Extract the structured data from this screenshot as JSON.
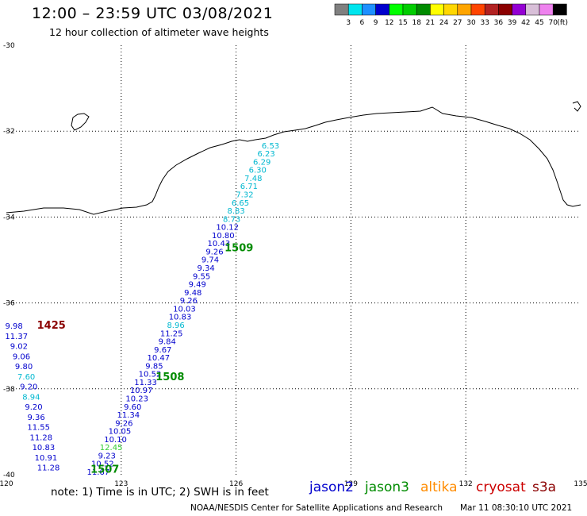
{
  "header": {
    "title": "12:00 – 23:59 UTC 03/08/2021",
    "subtitle": "12 hour collection of altimeter wave heights"
  },
  "colorbar": {
    "labels": [
      "3",
      "6",
      "9",
      "12",
      "15",
      "18",
      "21",
      "24",
      "27",
      "30",
      "33",
      "36",
      "39",
      "42",
      "45",
      "70"
    ],
    "unit": "(ft)",
    "colors": [
      "#808080",
      "#00e5ee",
      "#1e90ff",
      "#0000cd",
      "#00ff00",
      "#00cd00",
      "#008b00",
      "#ffff00",
      "#ffd700",
      "#ffa500",
      "#ff4500",
      "#b22222",
      "#8b0000",
      "#9400d3",
      "#d8bfd8",
      "#ee82ee",
      "#000000"
    ]
  },
  "axes": {
    "x_ticks": [
      "120",
      "123",
      "126",
      "129",
      "132",
      "135"
    ],
    "x_values": [
      120,
      123,
      126,
      129,
      132,
      135
    ],
    "y_ticks": [
      "-30",
      "-32",
      "-34",
      "-36",
      "-38",
      "-40"
    ],
    "y_values": [
      -30,
      -32,
      -34,
      -36,
      -38,
      -40
    ],
    "lon_range": [
      120,
      135
    ],
    "lat_range": [
      -40,
      -30
    ],
    "grid": true
  },
  "tracks": [
    {
      "lon": 126.8,
      "lat": -32.4,
      "lon_start": 126.9,
      "values": [
        "6.53",
        "6.23",
        "6.29",
        "6.30",
        "7.48",
        "6.71",
        "7.32",
        "6.65",
        "8.83",
        "8.73",
        "10.12",
        "10.80",
        "10.43",
        "9.26",
        "9.74",
        "9.34",
        "9.55",
        "9.49",
        "9.48",
        "9.26",
        "10.03",
        "10.83",
        "8.96",
        "11.25",
        "9.84",
        "9.67",
        "10.47",
        "9.85",
        "10.52",
        "11.33",
        "10.97",
        "10.23",
        "9.60",
        "11.34",
        "9.26",
        "10.05",
        "10.10",
        "12.45",
        "9.23",
        "10.52",
        "11.67"
      ],
      "colors": [
        "#00b8d0",
        "#00b8d0",
        "#00b8d0",
        "#00b8d0",
        "#00b8d0",
        "#00b8d0",
        "#00b8d0",
        "#00b8d0",
        "#00b8d0",
        "#00b8d0",
        "#0000cd",
        "#0000cd",
        "#0000cd",
        "#0000cd",
        "#0000cd",
        "#0000cd",
        "#0000cd",
        "#0000cd",
        "#0000cd",
        "#0000cd",
        "#0000cd",
        "#0000cd",
        "#00b8d0",
        "#0000cd",
        "#0000cd",
        "#0000cd",
        "#0000cd",
        "#0000cd",
        "#0000cd",
        "#0000cd",
        "#0000cd",
        "#0000cd",
        "#0000cd",
        "#0000cd",
        "#0000cd",
        "#0000cd",
        "#0000cd",
        "#32cd32",
        "#0000cd",
        "#0000cd",
        "#0000cd"
      ],
      "lon_end": 122.4,
      "lat_end": -40.0,
      "time_labels": [
        {
          "text": "1509",
          "lon": 125.7,
          "lat": -34.8
        },
        {
          "text": "1508",
          "lon": 123.9,
          "lat": -37.8
        },
        {
          "text": "1507",
          "lon": 122.2,
          "lat": -39.95
        }
      ],
      "time_color": "#008b00"
    },
    {
      "values": [
        "9.98",
        "11.37",
        "9.02",
        "9.06",
        "9.80",
        "7.60",
        "9.20",
        "8.94",
        "9.20",
        "9.36",
        "11.55",
        "11.28",
        "10.83",
        "10.91",
        "11.28"
      ],
      "colors": [
        "#0000cd",
        "#0000cd",
        "#0000cd",
        "#0000cd",
        "#0000cd",
        "#00b8d0",
        "#0000cd",
        "#00b8d0",
        "#0000cd",
        "#0000cd",
        "#0000cd",
        "#0000cd",
        "#0000cd",
        "#0000cd",
        "#0000cd"
      ],
      "lon_start": 120.2,
      "lat_start": -36.6,
      "lon_end": 121.1,
      "lat_end": -39.9,
      "time_labels": [
        {
          "text": "1425",
          "lon": 120.8,
          "lat": -36.6
        }
      ],
      "time_color": "#8b0000"
    }
  ],
  "footer": {
    "note": "note:  1) Time is in UTC;  2) SWH is in feet",
    "legend": [
      {
        "name": "jason2",
        "color": "#0000cd"
      },
      {
        "name": "jason3",
        "color": "#008b00"
      },
      {
        "name": "altika",
        "color": "#ff8c00"
      },
      {
        "name": "cryosat",
        "color": "#cc0000"
      },
      {
        "name": "s3a",
        "color": "#8b0000"
      }
    ],
    "credit": "NOAA/NESDIS Center for Satellite Applications and Research",
    "timestamp": "Mar 11 08:30:10 UTC 2021"
  }
}
